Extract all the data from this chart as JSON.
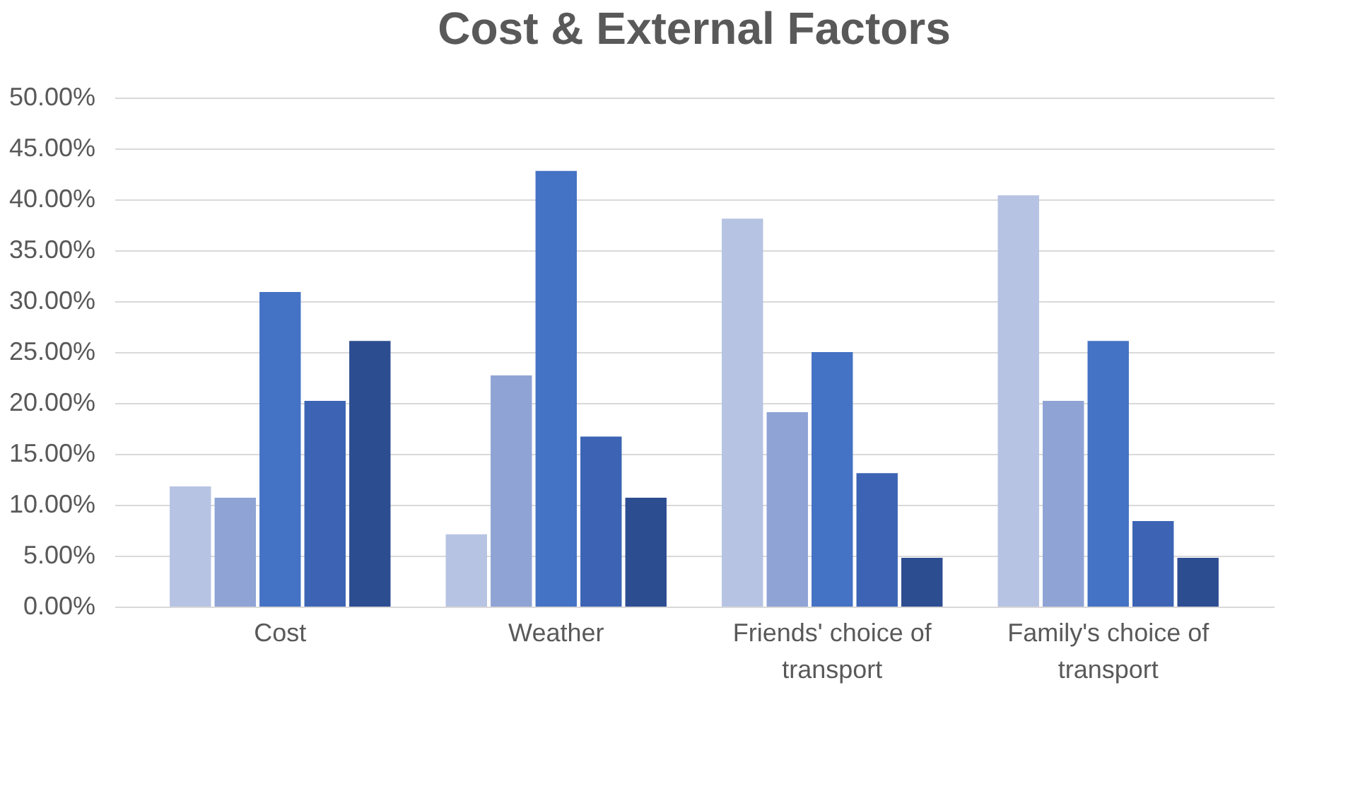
{
  "chart_data": {
    "type": "bar",
    "title": "Cost & External Factors",
    "categories": [
      "Cost",
      "Weather",
      "Friends' choice of transport",
      "Family's choice of transport"
    ],
    "series": [
      {
        "color": "#b7c3e3",
        "values": [
          11.8,
          7.1,
          38.1,
          40.4
        ]
      },
      {
        "color": "#8fa3d5",
        "values": [
          10.7,
          22.7,
          19.1,
          20.2
        ]
      },
      {
        "color": "#4472c4",
        "values": [
          30.9,
          42.8,
          25.0,
          26.1
        ]
      },
      {
        "color": "#3d64b4",
        "values": [
          20.2,
          16.7,
          13.1,
          8.4
        ]
      },
      {
        "color": "#2d4d91",
        "values": [
          26.1,
          10.7,
          4.8,
          4.8
        ]
      }
    ],
    "ylim": [
      0,
      50
    ],
    "yticks": [
      {
        "value": 0,
        "label": "0.00%"
      },
      {
        "value": 5,
        "label": "5.00%"
      },
      {
        "value": 10,
        "label": "10.00%"
      },
      {
        "value": 15,
        "label": "15.00%"
      },
      {
        "value": 20,
        "label": "20.00%"
      },
      {
        "value": 25,
        "label": "25.00%"
      },
      {
        "value": 30,
        "label": "30.00%"
      },
      {
        "value": 35,
        "label": "35.00%"
      },
      {
        "value": 40,
        "label": "40.00%"
      },
      {
        "value": 45,
        "label": "45.00%"
      },
      {
        "value": 50,
        "label": "50.00%"
      }
    ],
    "grid": "y",
    "legend": false
  }
}
